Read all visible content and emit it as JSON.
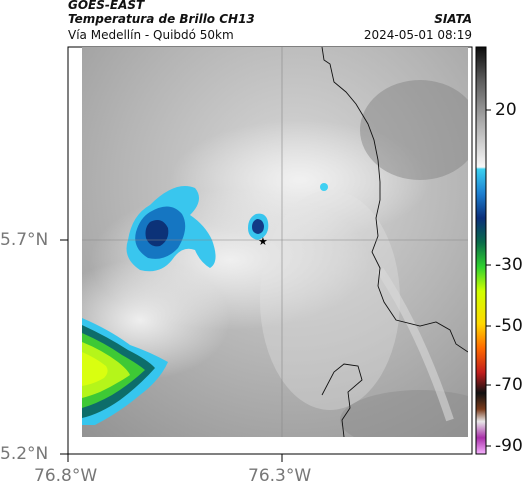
{
  "header": {
    "satellite": "GOES-EAST",
    "title": "Temperatura de Brillo CH13",
    "source": "SIATA",
    "region": "Vía Medellín - Quibdó 50km",
    "datetime": "2024-05-01 08:19"
  },
  "axes": {
    "lat_ticks": [
      "5.7°N",
      "5.2°N"
    ],
    "lon_ticks": [
      "76.8°W",
      "76.3°W"
    ]
  },
  "colorbar": {
    "ticks": [
      "20",
      "-30",
      "-50",
      "-70",
      "-90"
    ]
  },
  "marker": {
    "symbol": "★",
    "name": "location-star"
  }
}
